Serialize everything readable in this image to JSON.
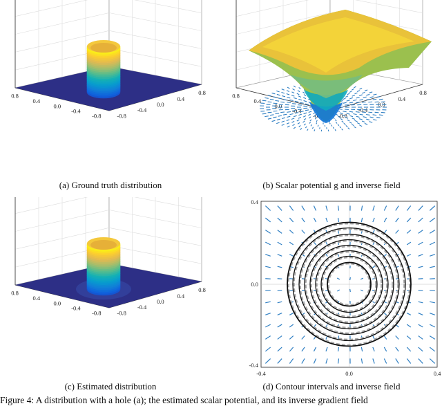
{
  "panels": {
    "a": {
      "caption": "(a)  Ground truth distribution",
      "ticks_left": [
        "0.8",
        "0.4",
        "0.0",
        "-0.4",
        "-0.8"
      ],
      "ticks_right": [
        "0.8",
        "0.4",
        "0.0",
        "-0.4",
        "-0.8"
      ]
    },
    "b": {
      "caption": "(b)  Scalar potential g and inverse field",
      "ticks_left": [
        "0.8",
        "0.4",
        "0.0",
        "-0.4",
        "-0.8"
      ],
      "ticks_right": [
        "0.8",
        "0.4",
        "0.0",
        "-0.4",
        "-0.8"
      ]
    },
    "c": {
      "caption": "(c)  Estimated distribution",
      "ticks_left": [
        "0.8",
        "0.4",
        "0.0",
        "-0.4",
        "-0.8"
      ],
      "ticks_right": [
        "0.8",
        "0.4",
        "0.0",
        "-0.4",
        "-0.8"
      ]
    },
    "d": {
      "caption": "(d)  Contour intervals and inverse field",
      "y_ticks": [
        "0.4",
        "0.0",
        "-0.4"
      ],
      "x_ticks": [
        "-0.4",
        "0.0",
        "0.4"
      ]
    }
  },
  "footer_text": "Figure 4: A distribution with a hole (a); the estimated scalar potential, and its inverse gradient field",
  "colors": {
    "floor": "#2d2f86",
    "arrow": "#2f7fc3",
    "contour_solid": "#111111",
    "contour_dashed": "#a8a8a8"
  }
}
